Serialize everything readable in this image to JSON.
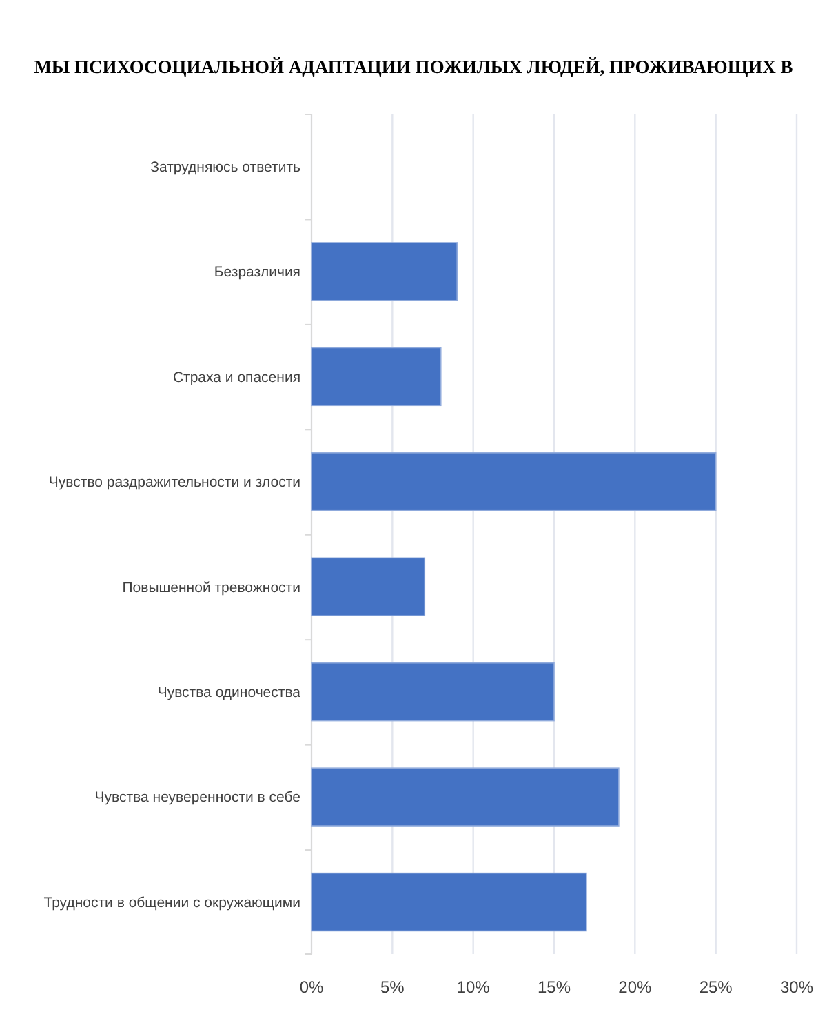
{
  "chart_data": {
    "type": "bar",
    "orientation": "horizontal",
    "title": "МЫ ПСИХОСОЦИАЛЬНОЙ АДАПТАЦИИ ПОЖИЛЫХ ЛЮДЕЙ, ПРОЖИВАЮЩИХ В",
    "categories": [
      "Затрудняюсь ответить",
      "Безразличия",
      "Страха и опасения",
      "Чувство раздражительности и злости",
      "Повышенной тревожности",
      "Чувства одиночества",
      "Чувства неуверенности в себе",
      "Трудности в общении с окружающими"
    ],
    "values": [
      0,
      9,
      8,
      25,
      7,
      15,
      19,
      17
    ],
    "color": "#4472c4",
    "xlim": [
      0,
      30
    ],
    "xticks": [
      {
        "value": 0,
        "label": "0%"
      },
      {
        "value": 5,
        "label": "5%"
      },
      {
        "value": 10,
        "label": "10%"
      },
      {
        "value": 15,
        "label": "15%"
      },
      {
        "value": 20,
        "label": "20%"
      },
      {
        "value": 25,
        "label": "25%"
      },
      {
        "value": 30,
        "label": "30%"
      }
    ],
    "grid": "x"
  }
}
